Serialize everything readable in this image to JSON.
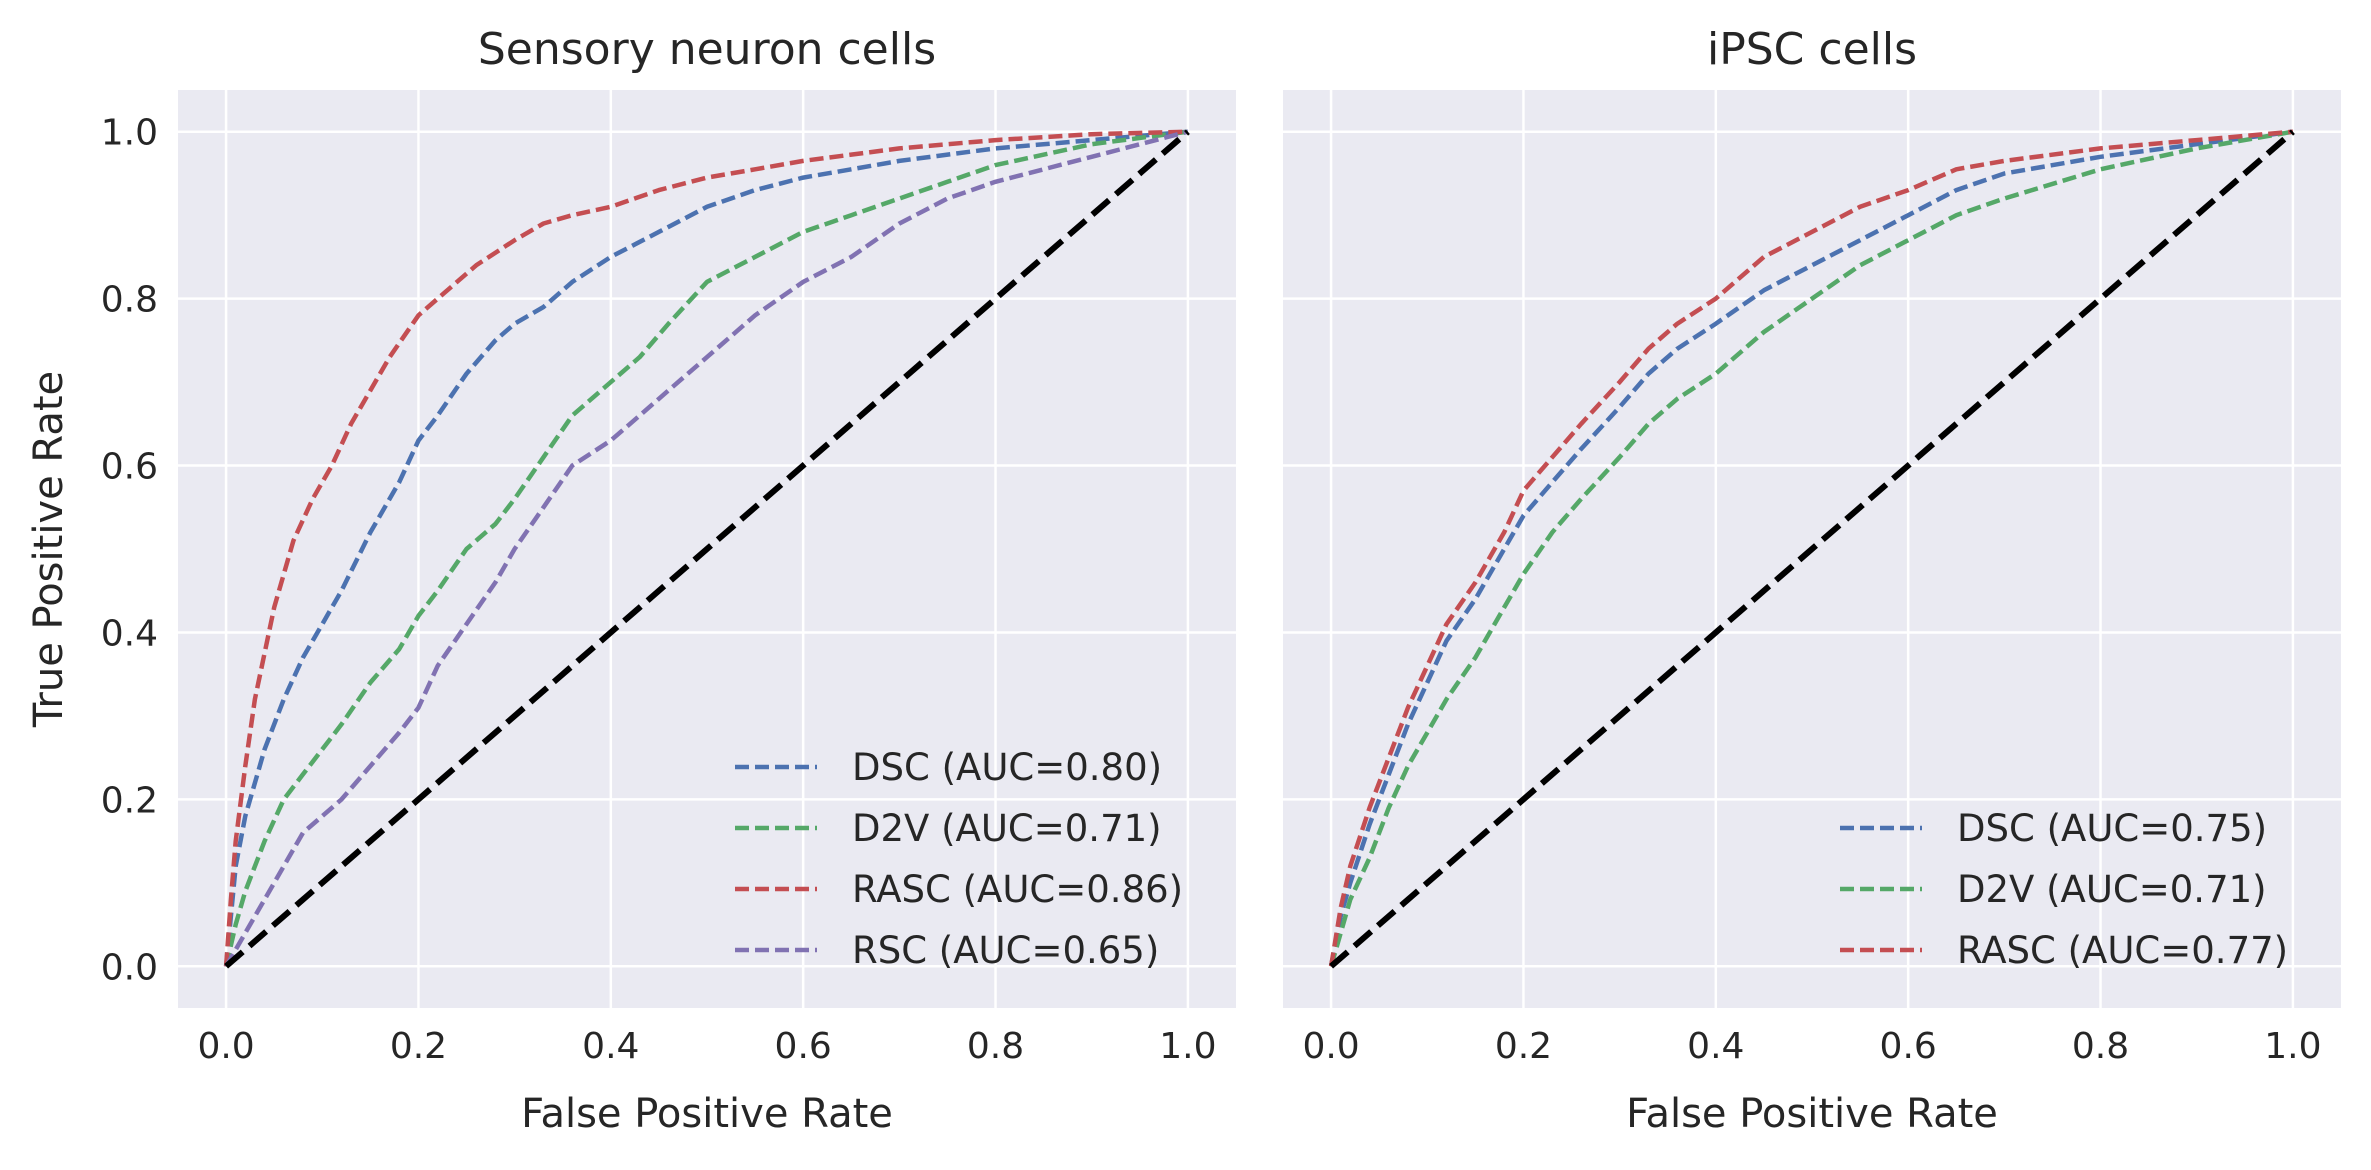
{
  "shared": {
    "xlabel": "False Positive Rate",
    "ylabel": "True Positive Rate",
    "xticks": [
      "0.0",
      "0.2",
      "0.4",
      "0.6",
      "0.8",
      "1.0"
    ],
    "yticks": [
      "0.0",
      "0.2",
      "0.4",
      "0.6",
      "0.8",
      "1.0"
    ]
  },
  "colors": {
    "DSC": "#4c72b0",
    "D2V": "#55a868",
    "RASC": "#c44e52",
    "RSC": "#8172b2",
    "diagonal": "#000000",
    "background": "#eaeaf2",
    "grid": "#ffffff"
  },
  "chart_data": [
    {
      "type": "line",
      "title": "Sensory neuron cells",
      "xlabel": "False Positive Rate",
      "ylabel": "True Positive Rate",
      "xlim": [
        -0.05,
        1.05
      ],
      "ylim": [
        -0.05,
        1.05
      ],
      "grid": true,
      "legend_position": "lower-right",
      "series": [
        {
          "name": "DSC (AUC=0.80)",
          "key": "DSC",
          "x": [
            0,
            0.005,
            0.01,
            0.02,
            0.04,
            0.06,
            0.08,
            0.1,
            0.12,
            0.15,
            0.18,
            0.2,
            0.22,
            0.25,
            0.28,
            0.3,
            0.33,
            0.36,
            0.4,
            0.45,
            0.5,
            0.55,
            0.6,
            0.65,
            0.7,
            0.8,
            0.9,
            1.0
          ],
          "y": [
            0,
            0.06,
            0.12,
            0.18,
            0.26,
            0.32,
            0.37,
            0.41,
            0.45,
            0.52,
            0.58,
            0.63,
            0.66,
            0.71,
            0.75,
            0.77,
            0.79,
            0.82,
            0.85,
            0.88,
            0.91,
            0.93,
            0.945,
            0.955,
            0.965,
            0.98,
            0.99,
            1.0
          ]
        },
        {
          "name": "D2V (AUC=0.71)",
          "key": "D2V",
          "x": [
            0,
            0.01,
            0.02,
            0.04,
            0.06,
            0.08,
            0.1,
            0.12,
            0.15,
            0.18,
            0.2,
            0.22,
            0.25,
            0.28,
            0.3,
            0.33,
            0.36,
            0.4,
            0.43,
            0.46,
            0.5,
            0.55,
            0.6,
            0.65,
            0.7,
            0.75,
            0.8,
            0.9,
            1.0
          ],
          "y": [
            0,
            0.05,
            0.09,
            0.15,
            0.2,
            0.23,
            0.26,
            0.29,
            0.34,
            0.38,
            0.42,
            0.45,
            0.5,
            0.53,
            0.56,
            0.61,
            0.66,
            0.7,
            0.73,
            0.77,
            0.82,
            0.85,
            0.88,
            0.9,
            0.92,
            0.94,
            0.96,
            0.985,
            1.0
          ]
        },
        {
          "name": "RASC (AUC=0.86)",
          "key": "RASC",
          "x": [
            0,
            0.005,
            0.01,
            0.02,
            0.03,
            0.05,
            0.07,
            0.09,
            0.11,
            0.13,
            0.15,
            0.17,
            0.2,
            0.23,
            0.26,
            0.3,
            0.33,
            0.36,
            0.4,
            0.45,
            0.5,
            0.55,
            0.6,
            0.7,
            0.8,
            0.9,
            1.0
          ],
          "y": [
            0,
            0.08,
            0.15,
            0.24,
            0.32,
            0.43,
            0.51,
            0.56,
            0.6,
            0.65,
            0.69,
            0.73,
            0.78,
            0.81,
            0.84,
            0.87,
            0.89,
            0.9,
            0.91,
            0.93,
            0.945,
            0.955,
            0.965,
            0.98,
            0.99,
            0.997,
            1.0
          ]
        },
        {
          "name": "RSC (AUC=0.65)",
          "key": "RSC",
          "x": [
            0,
            0.01,
            0.02,
            0.04,
            0.06,
            0.08,
            0.1,
            0.12,
            0.15,
            0.18,
            0.2,
            0.22,
            0.25,
            0.28,
            0.3,
            0.33,
            0.36,
            0.4,
            0.43,
            0.46,
            0.5,
            0.55,
            0.6,
            0.65,
            0.7,
            0.75,
            0.8,
            0.9,
            1.0
          ],
          "y": [
            0,
            0.02,
            0.04,
            0.08,
            0.12,
            0.16,
            0.18,
            0.2,
            0.24,
            0.28,
            0.31,
            0.36,
            0.41,
            0.46,
            0.5,
            0.55,
            0.6,
            0.63,
            0.66,
            0.69,
            0.73,
            0.78,
            0.82,
            0.85,
            0.89,
            0.92,
            0.94,
            0.97,
            1.0
          ]
        }
      ],
      "diagonal": {
        "x": [
          0,
          1
        ],
        "y": [
          0,
          1
        ]
      }
    },
    {
      "type": "line",
      "title": "iPSC cells",
      "xlabel": "False Positive Rate",
      "ylabel": "",
      "xlim": [
        -0.05,
        1.05
      ],
      "ylim": [
        -0.05,
        1.05
      ],
      "grid": true,
      "legend_position": "lower-right",
      "series": [
        {
          "name": "DSC (AUC=0.75)",
          "key": "DSC",
          "x": [
            0,
            0.01,
            0.02,
            0.04,
            0.06,
            0.08,
            0.1,
            0.12,
            0.15,
            0.18,
            0.2,
            0.23,
            0.26,
            0.3,
            0.33,
            0.36,
            0.4,
            0.45,
            0.5,
            0.55,
            0.6,
            0.65,
            0.7,
            0.8,
            0.9,
            1.0
          ],
          "y": [
            0,
            0.06,
            0.1,
            0.17,
            0.23,
            0.29,
            0.34,
            0.39,
            0.44,
            0.5,
            0.54,
            0.58,
            0.62,
            0.67,
            0.71,
            0.74,
            0.77,
            0.81,
            0.84,
            0.87,
            0.9,
            0.93,
            0.95,
            0.97,
            0.985,
            1.0
          ]
        },
        {
          "name": "D2V (AUC=0.71)",
          "key": "D2V",
          "x": [
            0,
            0.01,
            0.02,
            0.04,
            0.06,
            0.08,
            0.1,
            0.12,
            0.15,
            0.18,
            0.2,
            0.23,
            0.26,
            0.3,
            0.33,
            0.36,
            0.4,
            0.45,
            0.5,
            0.55,
            0.6,
            0.65,
            0.7,
            0.8,
            0.9,
            1.0
          ],
          "y": [
            0,
            0.04,
            0.08,
            0.13,
            0.19,
            0.24,
            0.28,
            0.32,
            0.37,
            0.43,
            0.47,
            0.52,
            0.56,
            0.61,
            0.65,
            0.68,
            0.71,
            0.76,
            0.8,
            0.84,
            0.87,
            0.9,
            0.92,
            0.955,
            0.98,
            1.0
          ]
        },
        {
          "name": "RASC (AUC=0.77)",
          "key": "RASC",
          "x": [
            0,
            0.01,
            0.02,
            0.04,
            0.06,
            0.08,
            0.1,
            0.12,
            0.15,
            0.18,
            0.2,
            0.23,
            0.26,
            0.3,
            0.33,
            0.36,
            0.4,
            0.45,
            0.5,
            0.55,
            0.6,
            0.65,
            0.7,
            0.8,
            0.9,
            1.0
          ],
          "y": [
            0,
            0.07,
            0.12,
            0.19,
            0.25,
            0.31,
            0.36,
            0.41,
            0.46,
            0.52,
            0.57,
            0.61,
            0.65,
            0.7,
            0.74,
            0.77,
            0.8,
            0.85,
            0.88,
            0.91,
            0.93,
            0.955,
            0.965,
            0.98,
            0.99,
            1.0
          ]
        }
      ],
      "diagonal": {
        "x": [
          0,
          1
        ],
        "y": [
          0,
          1
        ]
      }
    }
  ]
}
